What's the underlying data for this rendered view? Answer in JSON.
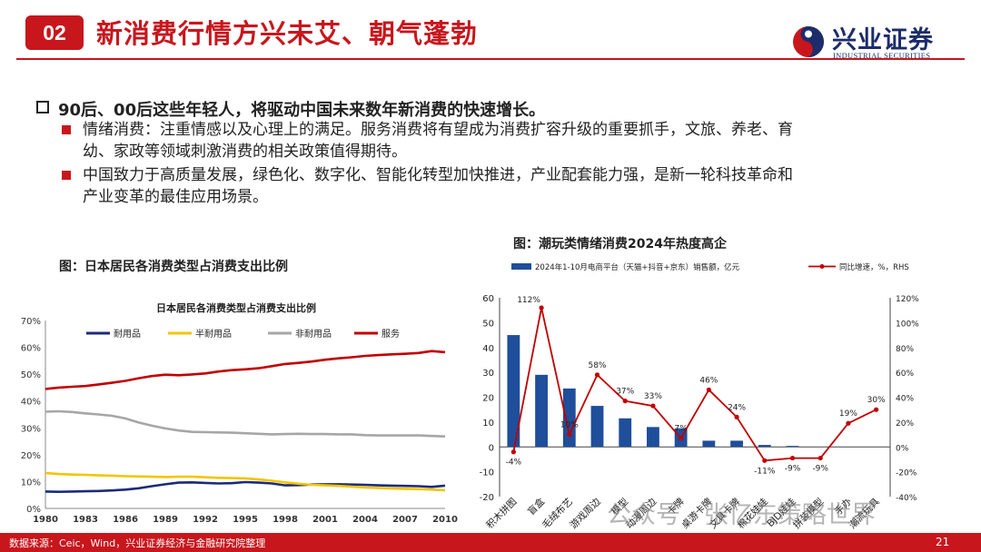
{
  "header": {
    "section_number": "02",
    "title": "新消费行情方兴未艾、朝气蓬勃",
    "logo_cn": "兴业证券",
    "logo_en": "INDUSTRIAL SECURITIES"
  },
  "bullets": {
    "main": "90后、00后这些年轻人，将驱动中国未来数年新消费的快速增长。",
    "sub1_line1": "情绪消费：注重情感以及心理上的满足。服务消费将有望成为消费扩容升级的重要抓手，文旅、养老、育",
    "sub1_line2": "幼、家政等领域刺激消费的相关政策值得期待。",
    "sub2_line1": "中国致力于高质量发展，绿色化、数字化、智能化转型加快推进，产业配套能力强，是新一轮科技革命和",
    "sub2_line2": "产业变革的最佳应用场景。"
  },
  "figure_left": {
    "caption": "图：日本居民各消费类型占消费支出比例"
  },
  "figure_right": {
    "caption": "图：潮玩类情绪消费2024年热度高企"
  },
  "footer": {
    "source": "数据来源：Ceic，Wind，兴业证券经济与金融研究院整理",
    "page": "21",
    "watermark": "公众号 · 张忆东策略世界"
  },
  "colors": {
    "brand_red": "#c8161d",
    "navy": "#1d2c6b",
    "bar_blue": "#1f4e9a"
  },
  "chart_data": [
    {
      "type": "line",
      "title": "日本居民各消费类型占消费支出比例",
      "x": [
        1980,
        1981,
        1982,
        1983,
        1984,
        1985,
        1986,
        1987,
        1988,
        1989,
        1990,
        1991,
        1992,
        1993,
        1994,
        1995,
        1996,
        1997,
        1998,
        1999,
        2000,
        2001,
        2002,
        2003,
        2004,
        2005,
        2006,
        2007,
        2008,
        2009,
        2010
      ],
      "x_ticks": [
        "1980",
        "1983",
        "1986",
        "1989",
        "1992",
        "1995",
        "1998",
        "2001",
        "2004",
        "2007",
        "2010"
      ],
      "y_ticks": [
        "0%",
        "10%",
        "20%",
        "30%",
        "40%",
        "50%",
        "60%",
        "70%"
      ],
      "ylim": [
        0,
        70
      ],
      "legend_position": "top",
      "grid": false,
      "series": [
        {
          "name": "耐用品",
          "color": "#1c2a7a",
          "values": [
            6.3,
            6.2,
            6.3,
            6.4,
            6.5,
            6.7,
            7.0,
            7.5,
            8.3,
            9.0,
            9.6,
            9.7,
            9.5,
            9.3,
            9.4,
            9.8,
            9.6,
            9.3,
            8.6,
            8.7,
            8.9,
            9.0,
            9.0,
            8.9,
            8.8,
            8.6,
            8.5,
            8.4,
            8.3,
            8.0,
            8.5
          ]
        },
        {
          "name": "半耐用品",
          "color": "#f2c500",
          "values": [
            13.2,
            12.8,
            12.6,
            12.5,
            12.3,
            12.2,
            12.0,
            11.9,
            11.8,
            11.7,
            11.8,
            11.8,
            11.6,
            11.4,
            11.3,
            11.2,
            10.8,
            10.3,
            9.7,
            9.2,
            8.8,
            8.6,
            8.4,
            8.1,
            7.8,
            7.6,
            7.4,
            7.3,
            7.2,
            7.0,
            6.8
          ]
        },
        {
          "name": "非耐用品",
          "color": "#a6a6a6",
          "values": [
            36.0,
            36.2,
            35.9,
            35.4,
            35.0,
            34.5,
            33.5,
            32.0,
            30.8,
            29.8,
            29.0,
            28.5,
            28.4,
            28.3,
            28.2,
            28.0,
            27.8,
            27.6,
            27.7,
            27.8,
            27.7,
            27.7,
            27.6,
            27.6,
            27.3,
            27.2,
            27.2,
            27.2,
            27.2,
            27.0,
            26.8
          ]
        },
        {
          "name": "服务",
          "color": "#c00000",
          "values": [
            44.5,
            45.0,
            45.3,
            45.6,
            46.2,
            46.8,
            47.5,
            48.5,
            49.3,
            49.8,
            49.6,
            49.9,
            50.3,
            51.0,
            51.5,
            51.8,
            52.2,
            53.0,
            53.8,
            54.2,
            54.7,
            55.4,
            55.9,
            56.3,
            56.8,
            57.1,
            57.4,
            57.6,
            57.9,
            58.6,
            58.2
          ]
        }
      ]
    },
    {
      "type": "bar",
      "categories": [
        "积木拼图",
        "盲盒",
        "毛绒布艺",
        "游戏周边",
        "模型",
        "动漫周边",
        "卡牌",
        "桌游卡牌",
        "文具卡牌",
        "棉花娃娃",
        "BJD娃娃",
        "拼装模型",
        "手办",
        "潮流玩具"
      ],
      "bar_values": [
        45,
        29,
        23.5,
        16.5,
        11.5,
        8,
        7.5,
        2.5,
        2.5,
        0.8,
        0.4,
        0,
        0,
        0
      ],
      "line_values": [
        -4,
        112,
        10,
        58,
        37,
        33,
        7,
        46,
        24,
        -11,
        -9,
        -9,
        19,
        30
      ],
      "line_labels": [
        "-4%",
        "112%",
        "10%",
        "58%",
        "37%",
        "33%",
        "7%",
        "46%",
        "24%",
        "-11%",
        "-9%",
        "-9%",
        "19%",
        "30%"
      ],
      "bar_series_name": "2024年1-10月电商平台（天猫+抖音+京东）销售额，亿元",
      "line_series_name": "同比增速，%，RHS",
      "y_left_ticks": [
        "-20",
        "-10",
        "0",
        "10",
        "20",
        "30",
        "40",
        "50",
        "60"
      ],
      "y_right_ticks": [
        "-40%",
        "-20%",
        "0%",
        "20%",
        "40%",
        "60%",
        "80%",
        "100%",
        "120%"
      ],
      "ylim_left": [
        -20,
        60
      ],
      "ylim_right": [
        -40,
        120
      ],
      "legend_position": "top",
      "grid": false
    }
  ]
}
